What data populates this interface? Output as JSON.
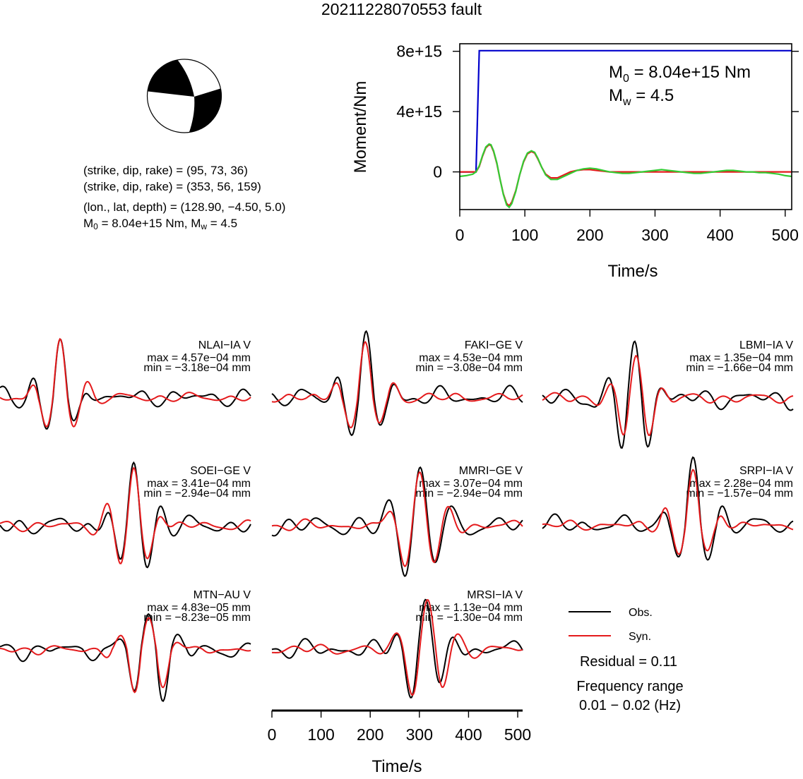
{
  "title": "20211228070553 fault",
  "parameters": {
    "line1": "(strike, dip, rake) = (95, 73, 36)",
    "line2": "(strike, dip, rake) = (353, 56, 159)",
    "line3": "(lon., lat, depth) = (128.90, −4.50, 5.0)",
    "m0_label": "M",
    "m0_sub": "0",
    "m0_value": " = 8.04e+15 Nm, M",
    "mw_sub": "w",
    "mw_value": " = 4.5"
  },
  "colors": {
    "observed": "#000000",
    "synthetic": "#e41a1c",
    "moment": "#0000cc",
    "fit": "#33cc33"
  },
  "chart_data": [
    {
      "type": "line",
      "title": "",
      "xlabel": "Time/s",
      "ylabel": "Moment/Nm",
      "xlim": [
        0,
        510
      ],
      "ylim": [
        -2500000000000000.0,
        8500000000000000.0
      ],
      "xticks": [
        "0",
        "100",
        "200",
        "300",
        "400",
        "500"
      ],
      "yticks": [
        "0",
        "4e+15",
        "8e+15"
      ],
      "annotation": {
        "m0_text": "M",
        "m0_sub": "0",
        "m0_val": " = 8.04e+15 Nm",
        "mw_text": "M",
        "mw_sub": "w",
        "mw_val": " = 4.5"
      },
      "series": [
        {
          "x": [
            0,
            25,
            30,
            510
          ],
          "y": [
            0,
            0,
            8040000000000000.0,
            8040000000000000.0
          ]
        },
        {
          "x": [
            0,
            10,
            20,
            25,
            30,
            35,
            40,
            45,
            48,
            52,
            57,
            62,
            67,
            72,
            76,
            80,
            86,
            92,
            98,
            104,
            110,
            115,
            120,
            126,
            132,
            140,
            150,
            160,
            170,
            180,
            190,
            200,
            210,
            220,
            230,
            240,
            250,
            260,
            270,
            280,
            290,
            300,
            310,
            320,
            330,
            340,
            350,
            360,
            370,
            380,
            390,
            400,
            410,
            420,
            430,
            440,
            450,
            460,
            470,
            480,
            490,
            500,
            510
          ],
          "y": [
            -300000000000000.0,
            -250000000000000.0,
            -150000000000000.0,
            0,
            400000000000000.0,
            1100000000000000.0,
            1650000000000000.0,
            1850000000000000.0,
            1800000000000000.0,
            1400000000000000.0,
            600000000000000.0,
            -500000000000000.0,
            -1500000000000000.0,
            -2200000000000000.0,
            -2350000000000000.0,
            -2100000000000000.0,
            -1300000000000000.0,
            -200000000000000.0,
            700000000000000.0,
            1250000000000000.0,
            1400000000000000.0,
            1300000000000000.0,
            900000000000000.0,
            300000000000000.0,
            -200000000000000.0,
            -500000000000000.0,
            -500000000000000.0,
            -300000000000000.0,
            -100000000000000.0,
            100000000000000.0,
            200000000000000.0,
            250000000000000.0,
            200000000000000.0,
            100000000000000.0,
            0,
            -50000000000000.0,
            -100000000000000.0,
            -100000000000000.0,
            -50000000000000.0,
            0,
            50000000000000.0,
            100000000000000.0,
            150000000000000.0,
            100000000000000.0,
            50000000000000.0,
            0,
            -50000000000000.0,
            -100000000000000.0,
            -100000000000000.0,
            -50000000000000.0,
            0,
            50000000000000.0,
            100000000000000.0,
            100000000000000.0,
            50000000000000.0,
            0,
            0,
            -50000000000000.0,
            -50000000000000.0,
            -100000000000000.0,
            -150000000000000.0,
            -250000000000000.0,
            -300000000000000.0
          ]
        },
        {
          "x": [
            0,
            10,
            20,
            25,
            30,
            35,
            40,
            45,
            48,
            52,
            57,
            62,
            67,
            72,
            76,
            80,
            86,
            92,
            98,
            104,
            110,
            115,
            120,
            126,
            132,
            140,
            150,
            160,
            170,
            180,
            190,
            200,
            210,
            220,
            230,
            240,
            260,
            280,
            300,
            320,
            340,
            360,
            380,
            400,
            420,
            440,
            460,
            480,
            500,
            510
          ],
          "y": [
            0,
            0,
            0,
            0,
            350000000000000.0,
            1050000000000000.0,
            1600000000000000.0,
            1800000000000000.0,
            1750000000000000.0,
            1350000000000000.0,
            550000000000000.0,
            -500000000000000.0,
            -1450000000000000.0,
            -2100000000000000.0,
            -2250000000000000.0,
            -2000000000000000.0,
            -1250000000000000.0,
            -200000000000000.0,
            650000000000000.0,
            1200000000000000.0,
            1350000000000000.0,
            1250000000000000.0,
            850000000000000.0,
            300000000000000.0,
            -150000000000000.0,
            -400000000000000.0,
            -400000000000000.0,
            -200000000000000.0,
            0,
            100000000000000.0,
            150000000000000.0,
            150000000000000.0,
            100000000000000.0,
            50000000000000.0,
            0,
            0,
            0,
            0,
            0,
            0,
            0,
            0,
            0,
            0,
            0,
            0,
            0,
            0,
            0,
            0
          ]
        }
      ]
    },
    {
      "type": "line",
      "xlabel": "Time/s",
      "xlim": [
        0,
        510
      ],
      "xticks": [
        "0",
        "100",
        "200",
        "300",
        "400",
        "500"
      ],
      "legend": {
        "position": "bottom-right",
        "entries": [
          "Obs.",
          "Syn."
        ]
      },
      "residual": "Residual = 0.11",
      "frequency_label": "Frequency range",
      "frequency_value": "0.01 − 0.02 (Hz)",
      "stations": [
        {
          "name": "NLAI−IA V",
          "max": "max = 4.57e−04 mm",
          "min": "min = −3.18e−04 mm",
          "amax": 4.57,
          "amin": -3.18,
          "t0": 120,
          "period": 58,
          "lag": 0
        },
        {
          "name": "FAKI−GE V",
          "max": "max = 4.53e−04 mm",
          "min": "min = −3.08e−04 mm",
          "amax": 4.53,
          "amin": -3.08,
          "t0": 188,
          "period": 62,
          "lag": 0
        },
        {
          "name": "LBMI−IA V",
          "max": "max = 1.35e−04 mm",
          "min": "min = −1.66e−04 mm",
          "amax": 1.35,
          "amin": -1.66,
          "t0": 185,
          "period": 56,
          "lag": 4
        },
        {
          "name": "SOEI−GE V",
          "max": "max = 3.41e−04 mm",
          "min": "min = −2.94e−04 mm",
          "amax": 3.41,
          "amin": -2.94,
          "t0": 270,
          "period": 58,
          "lag": 0
        },
        {
          "name": "MMRI−GE V",
          "max": "max = 3.07e−04 mm",
          "min": "min = −2.94e−04 mm",
          "amax": 3.07,
          "amin": -2.94,
          "t0": 298,
          "period": 64,
          "lag": 0
        },
        {
          "name": "SRPI−IA V",
          "max": "max = 2.28e−04 mm",
          "min": "min = −1.57e−04 mm",
          "amax": 2.28,
          "amin": -1.57,
          "t0": 304,
          "period": 62,
          "lag": 0
        },
        {
          "name": "MTN−AU V",
          "max": "max = 4.83e−05 mm",
          "min": "min = −8.23e−05 mm",
          "amax": 4.83,
          "amin": -8.23,
          "t0": 300,
          "period": 62,
          "lag": 0
        },
        {
          "name": "MRSI−IA V",
          "max": "max = 1.13e−04 mm",
          "min": "min = −1.30e−04 mm",
          "amax": 1.13,
          "amin": -1.3,
          "t0": 310,
          "period": 64,
          "lag": 4
        }
      ]
    }
  ]
}
